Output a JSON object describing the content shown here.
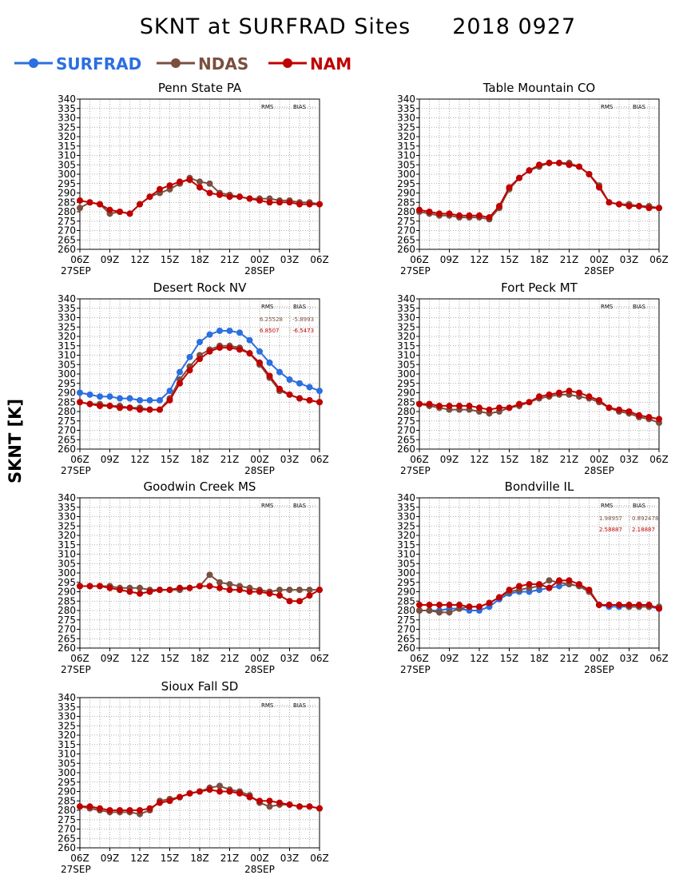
{
  "title": "SKNT at SURFRAD Sites",
  "date": "2018 0927",
  "ylabel": "SKNT [K]",
  "colors": {
    "SURFRAD": "#2b6fe0",
    "NDAS": "#7a4f3f",
    "NAM": "#c00000"
  },
  "legend": [
    {
      "name": "SURFRAD",
      "color": "#2b6fe0"
    },
    {
      "name": "NDAS",
      "color": "#7a4f3f"
    },
    {
      "name": "NAM",
      "color": "#c00000"
    }
  ],
  "chart_data": [
    {
      "type": "line",
      "title": "Penn State PA",
      "rms_label": "RMS",
      "bias_label": "BIAS",
      "stats": [],
      "xticks": [
        "06Z",
        "09Z",
        "12Z",
        "15Z",
        "18Z",
        "21Z",
        "00Z",
        "03Z",
        "06Z"
      ],
      "xdates": [
        "27SEP",
        "28SEP"
      ],
      "ylim": [
        260,
        340
      ],
      "yticks": [
        260,
        265,
        270,
        275,
        280,
        285,
        290,
        295,
        300,
        305,
        310,
        315,
        320,
        325,
        330,
        335,
        340
      ],
      "grid": true,
      "x_hours": [
        0,
        1,
        2,
        3,
        4,
        5,
        6,
        7,
        8,
        9,
        10,
        11,
        12,
        13,
        14,
        15,
        16,
        17,
        18,
        19,
        20,
        21,
        22,
        23,
        24
      ],
      "series": [
        {
          "name": "NDAS",
          "values": [
            282,
            285,
            284,
            279,
            280,
            279,
            284,
            288,
            290,
            292,
            295,
            298,
            296,
            295,
            290,
            289,
            288,
            287,
            287,
            287,
            286,
            286,
            285,
            285,
            284
          ]
        },
        {
          "name": "NAM",
          "values": [
            286,
            285,
            284,
            281,
            280,
            279,
            284,
            288,
            292,
            294,
            296,
            297,
            293,
            290,
            289,
            288,
            288,
            287,
            286,
            285,
            285,
            285,
            284,
            284,
            284
          ]
        }
      ]
    },
    {
      "type": "line",
      "title": "Table Mountain CO",
      "rms_label": "RMS",
      "bias_label": "BIAS",
      "stats": [],
      "xticks": [
        "06Z",
        "09Z",
        "12Z",
        "15Z",
        "18Z",
        "21Z",
        "00Z",
        "03Z",
        "06Z"
      ],
      "xdates": [
        "27SEP",
        "28SEP"
      ],
      "ylim": [
        260,
        340
      ],
      "yticks": [
        260,
        265,
        270,
        275,
        280,
        285,
        290,
        295,
        300,
        305,
        310,
        315,
        320,
        325,
        330,
        335,
        340
      ],
      "grid": true,
      "x_hours": [
        0,
        1,
        2,
        3,
        4,
        5,
        6,
        7,
        8,
        9,
        10,
        11,
        12,
        13,
        14,
        15,
        16,
        17,
        18,
        19,
        20,
        21,
        22,
        23,
        24
      ],
      "series": [
        {
          "name": "NDAS",
          "values": [
            280,
            279,
            278,
            278,
            277,
            277,
            277,
            276,
            282,
            292,
            298,
            302,
            304,
            306,
            306,
            306,
            304,
            300,
            294,
            285,
            284,
            284,
            283,
            283,
            282
          ]
        },
        {
          "name": "NAM",
          "values": [
            281,
            280,
            279,
            279,
            278,
            278,
            278,
            277,
            283,
            293,
            298,
            302,
            305,
            306,
            306,
            305,
            304,
            300,
            293,
            285,
            284,
            283,
            283,
            282,
            282
          ]
        }
      ]
    },
    {
      "type": "line",
      "title": "Desert Rock NV",
      "rms_label": "RMS",
      "bias_label": "BIAS",
      "stats": [
        {
          "series": "NDAS",
          "rms": "6.25528",
          "bias": "-5.8993"
        },
        {
          "series": "NAM",
          "rms": "6.8507",
          "bias": "-6.5473"
        }
      ],
      "xticks": [
        "06Z",
        "09Z",
        "12Z",
        "15Z",
        "18Z",
        "21Z",
        "00Z",
        "03Z",
        "06Z"
      ],
      "xdates": [
        "27SEP",
        "28SEP"
      ],
      "ylim": [
        260,
        340
      ],
      "yticks": [
        260,
        265,
        270,
        275,
        280,
        285,
        290,
        295,
        300,
        305,
        310,
        315,
        320,
        325,
        330,
        335,
        340
      ],
      "grid": true,
      "x_hours": [
        0,
        1,
        2,
        3,
        4,
        5,
        6,
        7,
        8,
        9,
        10,
        11,
        12,
        13,
        14,
        15,
        16,
        17,
        18,
        19,
        20,
        21,
        22,
        23,
        24
      ],
      "series": [
        {
          "name": "SURFRAD",
          "values": [
            290,
            289,
            288,
            288,
            287,
            287,
            286,
            286,
            286,
            291,
            301,
            309,
            317,
            321,
            323,
            323,
            322,
            318,
            312,
            306,
            301,
            297,
            295,
            293,
            291
          ]
        },
        {
          "name": "NDAS",
          "values": [
            285,
            284,
            284,
            283,
            283,
            282,
            282,
            281,
            281,
            287,
            297,
            304,
            310,
            313,
            315,
            315,
            314,
            311,
            305,
            298,
            291,
            289,
            287,
            286,
            285
          ]
        },
        {
          "name": "NAM",
          "values": [
            285,
            284,
            283,
            283,
            282,
            282,
            281,
            281,
            281,
            286,
            295,
            302,
            308,
            312,
            314,
            314,
            313,
            311,
            306,
            299,
            292,
            289,
            287,
            286,
            285
          ]
        }
      ]
    },
    {
      "type": "line",
      "title": "Fort Peck MT",
      "rms_label": "RMS",
      "bias_label": "BIAS",
      "stats": [],
      "xticks": [
        "06Z",
        "09Z",
        "12Z",
        "15Z",
        "18Z",
        "21Z",
        "00Z",
        "03Z",
        "06Z"
      ],
      "xdates": [
        "27SEP",
        "28SEP"
      ],
      "ylim": [
        260,
        340
      ],
      "yticks": [
        260,
        265,
        270,
        275,
        280,
        285,
        290,
        295,
        300,
        305,
        310,
        315,
        320,
        325,
        330,
        335,
        340
      ],
      "grid": true,
      "x_hours": [
        0,
        1,
        2,
        3,
        4,
        5,
        6,
        7,
        8,
        9,
        10,
        11,
        12,
        13,
        14,
        15,
        16,
        17,
        18,
        19,
        20,
        21,
        22,
        23,
        24
      ],
      "series": [
        {
          "name": "NDAS",
          "values": [
            284,
            283,
            282,
            281,
            281,
            281,
            280,
            279,
            280,
            282,
            283,
            285,
            287,
            288,
            289,
            289,
            288,
            287,
            285,
            282,
            280,
            279,
            277,
            276,
            274
          ]
        },
        {
          "name": "NAM",
          "values": [
            284,
            284,
            283,
            283,
            283,
            283,
            282,
            281,
            282,
            282,
            284,
            285,
            288,
            289,
            290,
            291,
            290,
            288,
            286,
            282,
            281,
            280,
            278,
            277,
            276
          ]
        }
      ]
    },
    {
      "type": "line",
      "title": "Goodwin Creek MS",
      "rms_label": "RMS",
      "bias_label": "BIAS",
      "stats": [],
      "xticks": [
        "06Z",
        "09Z",
        "12Z",
        "15Z",
        "18Z",
        "21Z",
        "00Z",
        "03Z",
        "06Z"
      ],
      "xdates": [
        "27SEP",
        "28SEP"
      ],
      "ylim": [
        260,
        340
      ],
      "yticks": [
        260,
        265,
        270,
        275,
        280,
        285,
        290,
        295,
        300,
        305,
        310,
        315,
        320,
        325,
        330,
        335,
        340
      ],
      "grid": true,
      "x_hours": [
        0,
        1,
        2,
        3,
        4,
        5,
        6,
        7,
        8,
        9,
        10,
        11,
        12,
        13,
        14,
        15,
        16,
        17,
        18,
        19,
        20,
        21,
        22,
        23,
        24
      ],
      "series": [
        {
          "name": "NDAS",
          "values": [
            293,
            293,
            293,
            293,
            292,
            292,
            292,
            291,
            291,
            291,
            291,
            292,
            293,
            299,
            295,
            294,
            293,
            292,
            291,
            290,
            291,
            291,
            291,
            291,
            291
          ]
        },
        {
          "name": "NAM",
          "values": [
            293,
            293,
            293,
            292,
            291,
            290,
            289,
            290,
            291,
            291,
            292,
            292,
            293,
            293,
            292,
            291,
            291,
            290,
            290,
            289,
            288,
            285,
            285,
            288,
            291
          ]
        }
      ]
    },
    {
      "type": "line",
      "title": "Bondville IL",
      "rms_label": "RMS",
      "bias_label": "BIAS",
      "stats": [
        {
          "series": "NDAS",
          "rms": "1.98957",
          "bias": "0.892478"
        },
        {
          "series": "NAM",
          "rms": "2.58887",
          "bias": "2.18887"
        }
      ],
      "xticks": [
        "06Z",
        "09Z",
        "12Z",
        "15Z",
        "18Z",
        "21Z",
        "00Z",
        "03Z",
        "06Z"
      ],
      "xdates": [
        "27SEP",
        "28SEP"
      ],
      "ylim": [
        260,
        340
      ],
      "yticks": [
        260,
        265,
        270,
        275,
        280,
        285,
        290,
        295,
        300,
        305,
        310,
        315,
        320,
        325,
        330,
        335,
        340
      ],
      "grid": true,
      "x_hours": [
        0,
        1,
        2,
        3,
        4,
        5,
        6,
        7,
        8,
        9,
        10,
        11,
        12,
        13,
        14,
        15,
        16,
        17,
        18,
        19,
        20,
        21,
        22,
        23,
        24
      ],
      "series": [
        {
          "name": "SURFRAD",
          "values": [
            280,
            280,
            280,
            281,
            281,
            280,
            280,
            282,
            286,
            289,
            290,
            290,
            291,
            292,
            293,
            294,
            293,
            290,
            283,
            282,
            282,
            282,
            282,
            282,
            281
          ]
        },
        {
          "name": "NDAS",
          "values": [
            280,
            280,
            279,
            279,
            281,
            282,
            282,
            284,
            287,
            290,
            291,
            292,
            293,
            296,
            295,
            294,
            293,
            290,
            283,
            283,
            283,
            282,
            282,
            282,
            282
          ]
        },
        {
          "name": "NAM",
          "values": [
            283,
            283,
            283,
            283,
            283,
            282,
            282,
            284,
            287,
            291,
            293,
            294,
            294,
            292,
            296,
            296,
            294,
            291,
            283,
            283,
            283,
            283,
            283,
            283,
            281
          ]
        }
      ]
    },
    {
      "type": "line",
      "title": "Sioux Fall SD",
      "rms_label": "RMS",
      "bias_label": "BIAS",
      "stats": [],
      "xticks": [
        "06Z",
        "09Z",
        "12Z",
        "15Z",
        "18Z",
        "21Z",
        "00Z",
        "03Z",
        "06Z"
      ],
      "xdates": [
        "27SEP",
        "28SEP"
      ],
      "ylim": [
        260,
        340
      ],
      "yticks": [
        260,
        265,
        270,
        275,
        280,
        285,
        290,
        295,
        300,
        305,
        310,
        315,
        320,
        325,
        330,
        335,
        340
      ],
      "grid": true,
      "x_hours": [
        0,
        1,
        2,
        3,
        4,
        5,
        6,
        7,
        8,
        9,
        10,
        11,
        12,
        13,
        14,
        15,
        16,
        17,
        18,
        19,
        20,
        21,
        22,
        23,
        24
      ],
      "series": [
        {
          "name": "NDAS",
          "values": [
            282,
            281,
            280,
            279,
            279,
            279,
            278,
            280,
            285,
            286,
            287,
            289,
            290,
            292,
            293,
            291,
            290,
            288,
            284,
            282,
            283,
            283,
            282,
            282,
            281
          ]
        },
        {
          "name": "NAM",
          "values": [
            282,
            282,
            281,
            280,
            280,
            280,
            280,
            281,
            284,
            285,
            287,
            289,
            290,
            291,
            290,
            290,
            289,
            287,
            285,
            285,
            284,
            283,
            282,
            282,
            281
          ]
        }
      ]
    }
  ]
}
